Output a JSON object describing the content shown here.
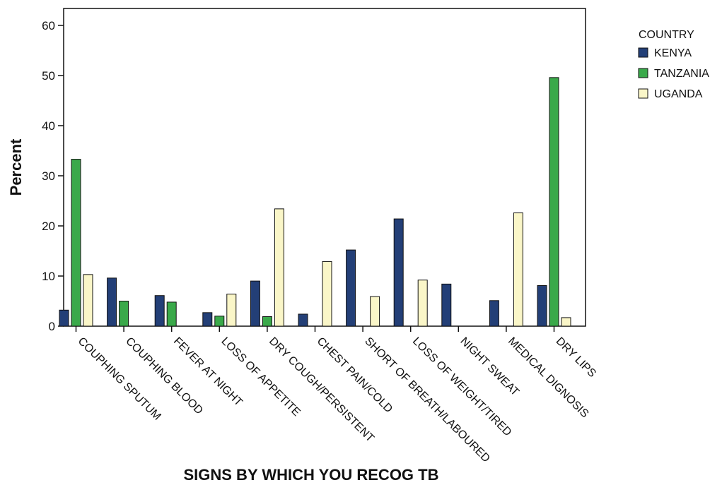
{
  "chart_data": {
    "type": "bar",
    "title": "",
    "xlabel": "SIGNS BY WHICH YOU RECOG TB",
    "ylabel": "Percent",
    "ylim": [
      0,
      60
    ],
    "yticks": [
      "0",
      "10",
      "20",
      "30",
      "40",
      "50",
      "60"
    ],
    "grid": false,
    "legend_position": "right",
    "legend_title": "COUNTRY",
    "categories": [
      "COUPHING SPUTUM",
      "COUPHING BLOOD",
      "FEVER AT NIGHT",
      "LOSS OF APPETITE",
      "DRY COUGH/PERSISTENT",
      "CHEST PAIN/COLD",
      "SHORT OF BREATH/LABOURED",
      "LOSS OF WEIGHT/TIRED",
      "NIGHT SWEAT",
      "MEDICAL DIGNOSIS",
      "DRY LIPS"
    ],
    "series": [
      {
        "name": "KENYA",
        "color": "#233f77",
        "values": [
          3.2,
          9.6,
          6.1,
          2.7,
          9.0,
          2.4,
          15.2,
          21.4,
          8.4,
          5.1,
          8.1
        ]
      },
      {
        "name": "TANZANIA",
        "color": "#3aa94a",
        "values": [
          33.3,
          5.0,
          4.8,
          2.0,
          1.9,
          0,
          0,
          0,
          0,
          0,
          49.6
        ]
      },
      {
        "name": "UGANDA",
        "color": "#faf6c8",
        "values": [
          10.3,
          0,
          0,
          6.4,
          23.4,
          12.9,
          5.9,
          9.2,
          0,
          22.6,
          1.7
        ]
      }
    ]
  }
}
